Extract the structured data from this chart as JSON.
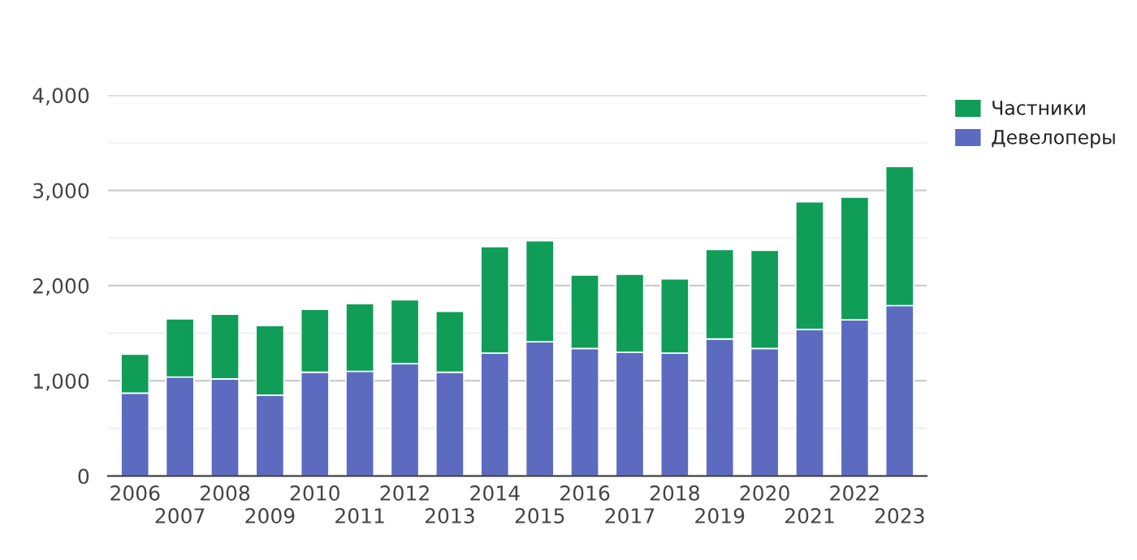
{
  "chart_data": {
    "type": "bar",
    "stacked": true,
    "categories": [
      "2006",
      "2007",
      "2008",
      "2009",
      "2010",
      "2011",
      "2012",
      "2013",
      "2014",
      "2015",
      "2016",
      "2017",
      "2018",
      "2019",
      "2020",
      "2021",
      "2022",
      "2023"
    ],
    "series": [
      {
        "name": "Девелоперы",
        "color": "#5c6bc0",
        "values": [
          870,
          1040,
          1020,
          850,
          1090,
          1100,
          1180,
          1090,
          1290,
          1410,
          1340,
          1300,
          1290,
          1440,
          1340,
          1540,
          1640,
          1790
        ]
      },
      {
        "name": "Частники",
        "color": "#0f9d58",
        "values": [
          410,
          610,
          680,
          730,
          660,
          710,
          670,
          640,
          1120,
          1060,
          770,
          820,
          780,
          940,
          1030,
          1340,
          1290,
          1460
        ]
      }
    ],
    "ylim": [
      0,
      4000
    ],
    "yticks": [
      0,
      {
        "value": 1000,
        "label": "1,000"
      },
      {
        "value": 2000,
        "label": "2,000"
      },
      {
        "value": 3000,
        "label": "3,000"
      },
      {
        "value": 4000,
        "label": "4,000"
      }
    ],
    "grid": "y",
    "legend": "top right"
  }
}
